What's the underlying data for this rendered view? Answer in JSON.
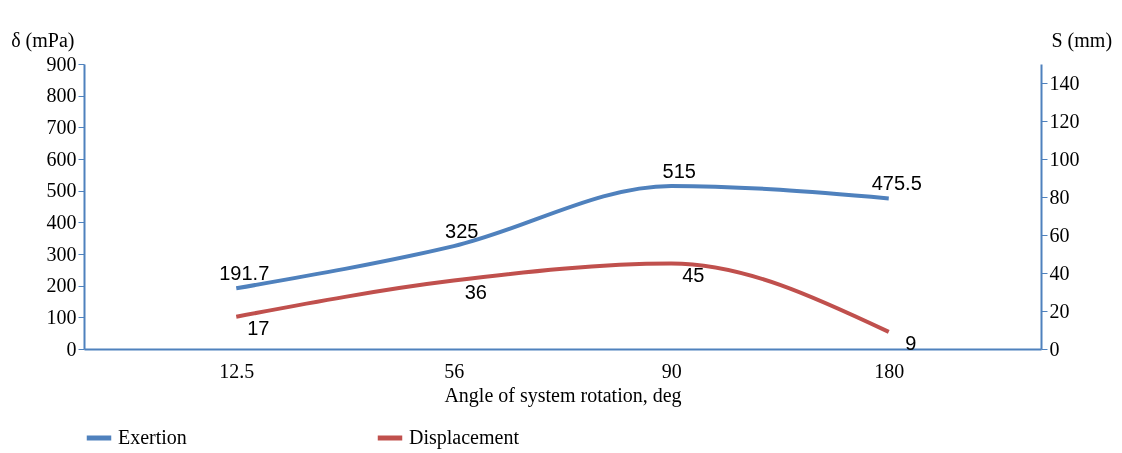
{
  "chart_data": {
    "type": "line",
    "xlabel": "Angle of system rotation, deg",
    "ylabel": "δ (mPa)",
    "y2label": "S (mm)",
    "categories": [
      "12.5",
      "56",
      "90",
      "180"
    ],
    "series": [
      {
        "name": "Exertion",
        "color": "#4f81bd",
        "values": [
          191.7,
          325,
          515,
          475.5
        ]
      },
      {
        "name": "Displacement",
        "color": "#c0504d",
        "values": [
          17,
          36,
          45,
          9
        ],
        "axis": "y2"
      }
    ],
    "ylim": [
      0,
      900
    ],
    "yticks": [
      0,
      100,
      200,
      300,
      400,
      500,
      600,
      700,
      800,
      900
    ],
    "y2lim": [
      0,
      150
    ],
    "y2ticks": [
      0,
      20,
      40,
      60,
      80,
      100,
      120,
      140
    ],
    "data_labels": true,
    "legend": "bottom",
    "grid": false,
    "marker": "none",
    "line_style": "solid"
  }
}
